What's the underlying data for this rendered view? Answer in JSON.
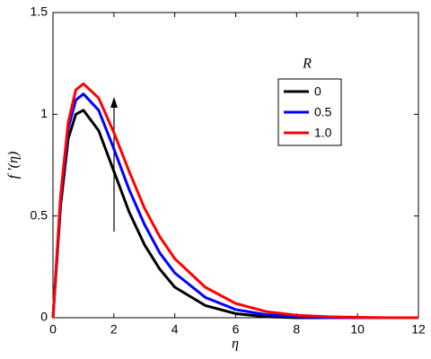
{
  "chart_data": {
    "type": "line",
    "x_label": "η",
    "y_label": "f ′(η)",
    "x": [
      0,
      0.25,
      0.5,
      0.75,
      1,
      1.5,
      2,
      2.5,
      3,
      3.5,
      4,
      5,
      6,
      7,
      8,
      9,
      10,
      11,
      12
    ],
    "series": [
      {
        "name": "0",
        "color": "#000000",
        "values": [
          0,
          0.55,
          0.88,
          1.0,
          1.02,
          0.92,
          0.72,
          0.52,
          0.36,
          0.24,
          0.15,
          0.06,
          0.02,
          0.005,
          0,
          0,
          0,
          0,
          0
        ]
      },
      {
        "name": "0.5",
        "color": "#0000ff",
        "values": [
          0,
          0.58,
          0.93,
          1.07,
          1.1,
          1.02,
          0.83,
          0.63,
          0.46,
          0.32,
          0.22,
          0.1,
          0.04,
          0.015,
          0.005,
          0,
          0,
          0,
          0
        ]
      },
      {
        "name": "1.0",
        "color": "#ff0000",
        "values": [
          0,
          0.6,
          0.96,
          1.12,
          1.15,
          1.08,
          0.91,
          0.72,
          0.54,
          0.4,
          0.29,
          0.15,
          0.07,
          0.03,
          0.012,
          0.005,
          0.002,
          0,
          0
        ]
      }
    ],
    "legend_title": "R",
    "legend": "upper right",
    "xlim": [
      0,
      12
    ],
    "xticks": [
      0,
      2,
      4,
      6,
      8,
      10,
      12
    ],
    "ylim": [
      0,
      1.5
    ],
    "yticks": [
      0,
      0.5,
      1,
      1.5
    ],
    "grid": false
  }
}
